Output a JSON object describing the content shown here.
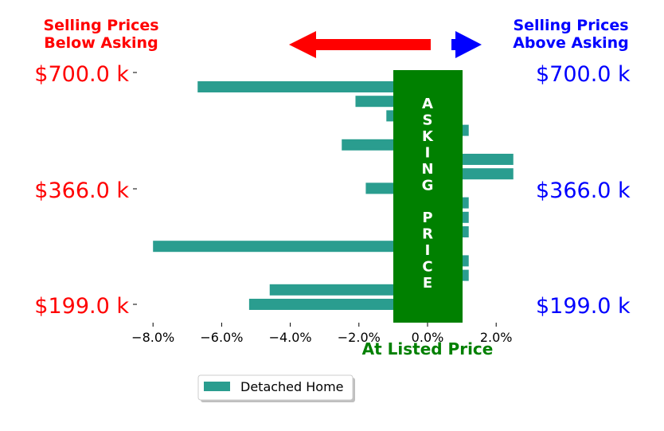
{
  "chart_data": {
    "type": "bar",
    "orientation": "horizontal",
    "title_left": [
      "Selling Prices",
      "Below Asking"
    ],
    "title_right": [
      "Selling Prices",
      "Above Asking"
    ],
    "xlabel": "At Listed Price",
    "center_band_label": "ASKING PRICE",
    "y_tick_labels_left": [
      "$700.0 k",
      "$366.0 k",
      "$199.0 k"
    ],
    "y_tick_labels_right": [
      "$700.0 k",
      "$366.0 k",
      "$199.0 k"
    ],
    "x_ticks": [
      -8,
      -6,
      -4,
      -2,
      0,
      2
    ],
    "x_tick_labels": [
      "−8.0%",
      "−6.0%",
      "−4.0%",
      "−2.0%",
      "0.0%",
      "2.0%"
    ],
    "xlim": [
      -9,
      2.5
    ],
    "series": [
      {
        "name": "Detached Home",
        "color": "#2a9d8f",
        "values": [
          -6.7,
          -2.1,
          -1.2,
          1.2,
          -2.5,
          2.5,
          2.5,
          -1.8,
          1.2,
          1.2,
          1.2,
          -8.0,
          1.2,
          1.2,
          -4.6,
          -5.2
        ]
      }
    ],
    "band_color": "#008000",
    "arrow_left_color": "#ff0000",
    "arrow_right_color": "#0000ff",
    "legend_position": "bottom-center"
  }
}
